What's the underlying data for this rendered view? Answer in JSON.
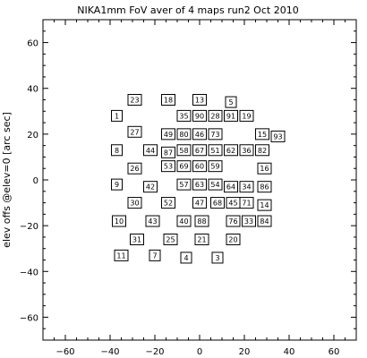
{
  "chart_data": {
    "type": "scatter",
    "title": "NIKA1mm FoV aver of 4 maps run2 Oct 2010",
    "xlabel": "",
    "ylabel": "elev offs @elev=0 [arc sec]",
    "xlim": [
      -70,
      70
    ],
    "ylim": [
      -70,
      70
    ],
    "xticks": [
      -60,
      -40,
      -20,
      0,
      20,
      40,
      60
    ],
    "yticks": [
      -60,
      -40,
      -20,
      0,
      20,
      40,
      60
    ],
    "grid": false,
    "marker": "labeled-box",
    "points": [
      {
        "label": "23",
        "x": -29,
        "y": 35
      },
      {
        "label": "18",
        "x": -14,
        "y": 35
      },
      {
        "label": "13",
        "x": 0,
        "y": 35
      },
      {
        "label": "5",
        "x": 14,
        "y": 34
      },
      {
        "label": "1",
        "x": -37,
        "y": 28
      },
      {
        "label": "35",
        "x": -7,
        "y": 28
      },
      {
        "label": "90",
        "x": 0,
        "y": 28
      },
      {
        "label": "28",
        "x": 7,
        "y": 28
      },
      {
        "label": "91",
        "x": 14,
        "y": 28
      },
      {
        "label": "19",
        "x": 21,
        "y": 28
      },
      {
        "label": "27",
        "x": -29,
        "y": 21
      },
      {
        "label": "49",
        "x": -14,
        "y": 20
      },
      {
        "label": "80",
        "x": -7,
        "y": 20
      },
      {
        "label": "46",
        "x": 0,
        "y": 20
      },
      {
        "label": "73",
        "x": 7,
        "y": 20
      },
      {
        "label": "15",
        "x": 28,
        "y": 20
      },
      {
        "label": "93",
        "x": 35,
        "y": 19
      },
      {
        "label": "8",
        "x": -37,
        "y": 13
      },
      {
        "label": "44",
        "x": -22,
        "y": 13
      },
      {
        "label": "87",
        "x": -14,
        "y": 12
      },
      {
        "label": "58",
        "x": -7,
        "y": 13
      },
      {
        "label": "67",
        "x": 0,
        "y": 13
      },
      {
        "label": "51",
        "x": 7,
        "y": 13
      },
      {
        "label": "62",
        "x": 14,
        "y": 13
      },
      {
        "label": "36",
        "x": 21,
        "y": 13
      },
      {
        "label": "82",
        "x": 28,
        "y": 13
      },
      {
        "label": "26",
        "x": -29,
        "y": 5
      },
      {
        "label": "53",
        "x": -14,
        "y": 6
      },
      {
        "label": "69",
        "x": -7,
        "y": 6
      },
      {
        "label": "60",
        "x": 0,
        "y": 6
      },
      {
        "label": "59",
        "x": 7,
        "y": 6
      },
      {
        "label": "16",
        "x": 29,
        "y": 5
      },
      {
        "label": "9",
        "x": -37,
        "y": -2
      },
      {
        "label": "42",
        "x": -22,
        "y": -3
      },
      {
        "label": "57",
        "x": -7,
        "y": -2
      },
      {
        "label": "63",
        "x": 0,
        "y": -2
      },
      {
        "label": "54",
        "x": 7,
        "y": -2
      },
      {
        "label": "64",
        "x": 14,
        "y": -3
      },
      {
        "label": "34",
        "x": 21,
        "y": -3
      },
      {
        "label": "86",
        "x": 29,
        "y": -3
      },
      {
        "label": "30",
        "x": -29,
        "y": -10
      },
      {
        "label": "52",
        "x": -14,
        "y": -10
      },
      {
        "label": "47",
        "x": 0,
        "y": -10
      },
      {
        "label": "68",
        "x": 8,
        "y": -10
      },
      {
        "label": "45",
        "x": 15,
        "y": -10
      },
      {
        "label": "71",
        "x": 21,
        "y": -10
      },
      {
        "label": "14",
        "x": 29,
        "y": -11
      },
      {
        "label": "10",
        "x": -36,
        "y": -18
      },
      {
        "label": "43",
        "x": -21,
        "y": -18
      },
      {
        "label": "40",
        "x": -7,
        "y": -18
      },
      {
        "label": "88",
        "x": 1,
        "y": -18
      },
      {
        "label": "76",
        "x": 15,
        "y": -18
      },
      {
        "label": "33",
        "x": 22,
        "y": -18
      },
      {
        "label": "84",
        "x": 29,
        "y": -18
      },
      {
        "label": "31",
        "x": -28,
        "y": -26
      },
      {
        "label": "25",
        "x": -13,
        "y": -26
      },
      {
        "label": "21",
        "x": 1,
        "y": -26
      },
      {
        "label": "20",
        "x": 15,
        "y": -26
      },
      {
        "label": "11",
        "x": -35,
        "y": -33
      },
      {
        "label": "7",
        "x": -20,
        "y": -33
      },
      {
        "label": "4",
        "x": -6,
        "y": -34
      },
      {
        "label": "3",
        "x": 8,
        "y": -34
      }
    ]
  }
}
